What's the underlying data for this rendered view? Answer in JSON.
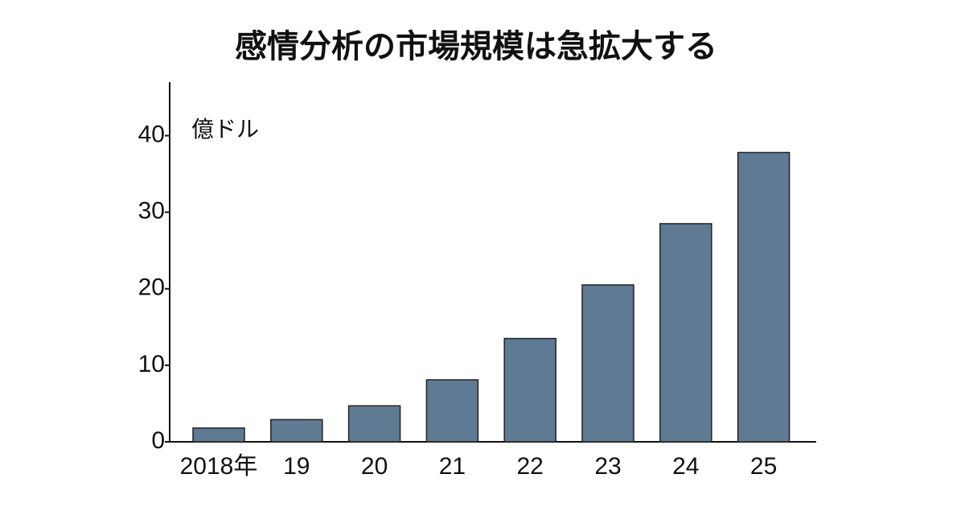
{
  "chart_data": {
    "type": "bar",
    "title": "感情分析の市場規模は急拡大する",
    "unit": "億ドル",
    "categories": [
      "2018年",
      "19",
      "20",
      "21",
      "22",
      "23",
      "24",
      "25"
    ],
    "values": [
      1.8,
      2.9,
      4.7,
      8.1,
      13.5,
      20.5,
      28.5,
      37.8
    ],
    "color": "#5f7a93",
    "ylim": [
      0,
      47
    ],
    "yticks": [
      0,
      10,
      20,
      30,
      40
    ],
    "grid": false
  }
}
